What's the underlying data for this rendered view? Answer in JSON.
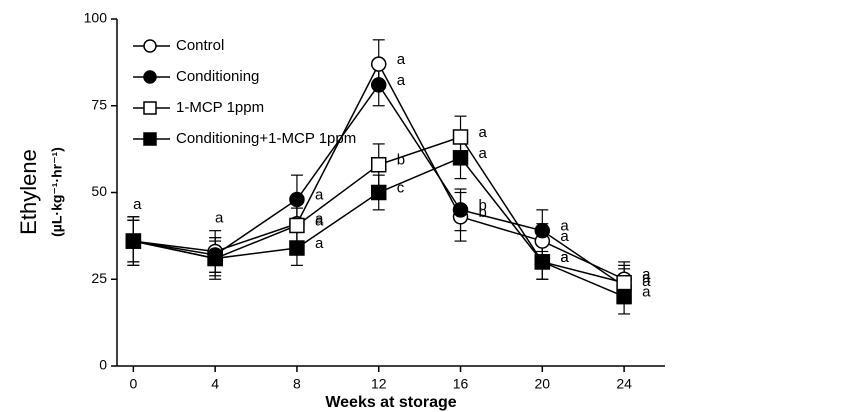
{
  "chart_data": {
    "type": "line",
    "x_label": "Weeks at storage",
    "y_label": "Ethylene",
    "y_label_units": "(µL·kg⁻¹·hr⁻¹)",
    "x": [
      0,
      4,
      8,
      12,
      16,
      20,
      24
    ],
    "xlim": [
      -0.8,
      26
    ],
    "xticks": [
      0,
      4,
      8,
      12,
      16,
      20,
      24
    ],
    "ylim": [
      0,
      100
    ],
    "yticks": [
      0,
      25,
      50,
      75,
      100
    ],
    "legend": "upper left",
    "series": [
      {
        "name": "Control",
        "color": "#000000",
        "marker": "circle-open",
        "values": [
          36,
          33,
          41,
          87,
          43,
          36,
          25
        ],
        "errors": [
          7,
          6,
          6,
          7,
          7,
          5,
          5
        ],
        "letters": [
          "a",
          "a",
          "a",
          "a",
          "b",
          "a",
          "a"
        ]
      },
      {
        "name": "Conditioning",
        "color": "#000000",
        "marker": "circle-filled",
        "values": [
          36,
          32,
          48,
          81,
          45,
          39,
          23
        ],
        "errors": [
          7,
          5,
          7,
          6,
          6,
          6,
          5
        ],
        "letters": [
          null,
          null,
          "a",
          "a",
          "b",
          "a",
          "a"
        ]
      },
      {
        "name": "1-MCP 1ppm",
        "color": "#000000",
        "marker": "square-open",
        "values": [
          36,
          31,
          40.5,
          58,
          66,
          30,
          24
        ],
        "errors": [
          6,
          6,
          5,
          6,
          6,
          5,
          5
        ],
        "letters": [
          null,
          null,
          "a",
          "b",
          "a",
          "a",
          "a"
        ]
      },
      {
        "name": "Conditioning+1-MCP 1ppm",
        "color": "#000000",
        "marker": "square-filled",
        "values": [
          36,
          31,
          34,
          50,
          60,
          30,
          20
        ],
        "errors": [
          6,
          5,
          5,
          5,
          6,
          5,
          5
        ],
        "letters": [
          null,
          null,
          "a",
          "c",
          "a",
          "a",
          "a"
        ]
      }
    ]
  }
}
